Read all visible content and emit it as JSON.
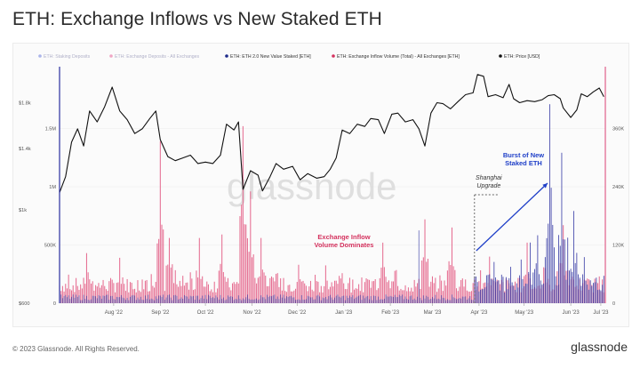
{
  "page": {
    "title": "ETH: Exchange Inflows vs New Staked ETH",
    "copyright": "© 2023 Glassnode. All Rights Reserved.",
    "brand": "glassnode",
    "watermark": "glassnode"
  },
  "chart_data": {
    "type": "bar",
    "title": "ETH: Exchange Inflows vs New Staked ETH",
    "legend": [
      {
        "label": "ETH: Staking Deposits",
        "color": "#aab4ea",
        "dimmed": true
      },
      {
        "label": "ETH: Exchange Deposits - All Exchanges",
        "color": "#f0a6c4",
        "dimmed": true
      },
      {
        "label": "ETH: ETH 2.0 New Value Staked [ETH]",
        "color": "#1d2a8a",
        "dimmed": false
      },
      {
        "label": "ETH: Exchange Inflow Volume (Total) - All Exchanges [ETH]",
        "color": "#d4335f",
        "dimmed": false
      },
      {
        "label": "ETH: Price [USD]",
        "color": "#111111",
        "dimmed": false
      }
    ],
    "legend_position": "top",
    "grid": true,
    "x_range": [
      "2022-07-10",
      "2023-07-08"
    ],
    "x_ticks": [
      "Aug '22",
      "Sep '22",
      "Oct '22",
      "Nov '22",
      "Dec '22",
      "Jan '23",
      "Feb '23",
      "Mar '23",
      "Apr '23",
      "May '23",
      "Jun '23",
      "Jul '23"
    ],
    "y_price": {
      "scale": "log",
      "ticks": [
        "$600",
        "$1k",
        "$1.4k",
        "$1.8k"
      ],
      "range": [
        600,
        2150
      ]
    },
    "y_inflow": {
      "ticks": [
        "0",
        "500K",
        "1M",
        "1.5M"
      ],
      "range": [
        0,
        2000000
      ]
    },
    "y_staked": {
      "ticks": [
        "0",
        "120K",
        "240K",
        "360K"
      ],
      "range": [
        0,
        480000
      ]
    },
    "price_series": {
      "name": "ETH: Price [USD]",
      "points": [
        [
          "2022-07-10",
          1100
        ],
        [
          "2022-07-14",
          1200
        ],
        [
          "2022-07-18",
          1450
        ],
        [
          "2022-07-22",
          1560
        ],
        [
          "2022-07-26",
          1420
        ],
        [
          "2022-07-30",
          1720
        ],
        [
          "2022-08-04",
          1620
        ],
        [
          "2022-08-09",
          1760
        ],
        [
          "2022-08-14",
          1960
        ],
        [
          "2022-08-19",
          1720
        ],
        [
          "2022-08-24",
          1640
        ],
        [
          "2022-08-29",
          1520
        ],
        [
          "2022-09-03",
          1560
        ],
        [
          "2022-09-08",
          1650
        ],
        [
          "2022-09-12",
          1720
        ],
        [
          "2022-09-15",
          1470
        ],
        [
          "2022-09-20",
          1340
        ],
        [
          "2022-09-25",
          1310
        ],
        [
          "2022-09-30",
          1330
        ],
        [
          "2022-10-05",
          1350
        ],
        [
          "2022-10-10",
          1290
        ],
        [
          "2022-10-15",
          1300
        ],
        [
          "2022-10-20",
          1290
        ],
        [
          "2022-10-25",
          1350
        ],
        [
          "2022-10-29",
          1600
        ],
        [
          "2022-11-03",
          1550
        ],
        [
          "2022-11-06",
          1620
        ],
        [
          "2022-11-09",
          1120
        ],
        [
          "2022-11-14",
          1240
        ],
        [
          "2022-11-19",
          1210
        ],
        [
          "2022-11-22",
          1110
        ],
        [
          "2022-11-27",
          1200
        ],
        [
          "2022-12-01",
          1290
        ],
        [
          "2022-12-06",
          1250
        ],
        [
          "2022-12-12",
          1270
        ],
        [
          "2022-12-17",
          1180
        ],
        [
          "2022-12-22",
          1220
        ],
        [
          "2022-12-28",
          1190
        ],
        [
          "2023-01-02",
          1200
        ],
        [
          "2023-01-06",
          1250
        ],
        [
          "2023-01-10",
          1330
        ],
        [
          "2023-01-14",
          1550
        ],
        [
          "2023-01-19",
          1520
        ],
        [
          "2023-01-24",
          1600
        ],
        [
          "2023-01-29",
          1580
        ],
        [
          "2023-02-02",
          1650
        ],
        [
          "2023-02-07",
          1640
        ],
        [
          "2023-02-11",
          1520
        ],
        [
          "2023-02-16",
          1690
        ],
        [
          "2023-02-20",
          1700
        ],
        [
          "2023-02-25",
          1620
        ],
        [
          "2023-03-02",
          1640
        ],
        [
          "2023-03-06",
          1560
        ],
        [
          "2023-03-10",
          1420
        ],
        [
          "2023-03-14",
          1700
        ],
        [
          "2023-03-18",
          1800
        ],
        [
          "2023-03-22",
          1790
        ],
        [
          "2023-03-27",
          1740
        ],
        [
          "2023-04-01",
          1810
        ],
        [
          "2023-04-06",
          1880
        ],
        [
          "2023-04-11",
          1900
        ],
        [
          "2023-04-14",
          2100
        ],
        [
          "2023-04-18",
          2080
        ],
        [
          "2023-04-21",
          1860
        ],
        [
          "2023-04-26",
          1880
        ],
        [
          "2023-05-01",
          1850
        ],
        [
          "2023-05-05",
          1990
        ],
        [
          "2023-05-08",
          1840
        ],
        [
          "2023-05-12",
          1800
        ],
        [
          "2023-05-17",
          1820
        ],
        [
          "2023-05-22",
          1810
        ],
        [
          "2023-05-27",
          1830
        ],
        [
          "2023-05-31",
          1870
        ],
        [
          "2023-06-04",
          1880
        ],
        [
          "2023-06-08",
          1840
        ],
        [
          "2023-06-10",
          1750
        ],
        [
          "2023-06-15",
          1660
        ],
        [
          "2023-06-19",
          1730
        ],
        [
          "2023-06-22",
          1890
        ],
        [
          "2023-06-26",
          1860
        ],
        [
          "2023-06-30",
          1910
        ],
        [
          "2023-07-04",
          1950
        ],
        [
          "2023-07-07",
          1860
        ]
      ]
    },
    "inflow_series": {
      "name": "ETH: Exchange Inflow Volume (Total) - All Exchanges [ETH]",
      "peaks": [
        [
          "2022-07-28",
          430000
        ],
        [
          "2022-08-19",
          390000
        ],
        [
          "2022-09-15",
          1390000
        ],
        [
          "2022-09-21",
          560000
        ],
        [
          "2022-10-11",
          560000
        ],
        [
          "2022-10-26",
          590000
        ],
        [
          "2022-11-09",
          1520000
        ],
        [
          "2022-11-14",
          960000
        ],
        [
          "2022-11-21",
          560000
        ],
        [
          "2022-12-16",
          330000
        ],
        [
          "2023-02-10",
          520000
        ],
        [
          "2023-03-10",
          720000
        ],
        [
          "2023-03-28",
          650000
        ],
        [
          "2023-04-22",
          400000
        ],
        [
          "2023-05-17",
          520000
        ],
        [
          "2023-06-10",
          670000
        ],
        [
          "2023-07-04",
          230000
        ]
      ]
    },
    "staked_series": {
      "name": "ETH: ETH 2.0 New Value Staked [ETH]",
      "peaks": [
        [
          "2023-03-06",
          150000
        ],
        [
          "2023-04-13",
          55000
        ],
        [
          "2023-04-25",
          85000
        ],
        [
          "2023-05-06",
          75000
        ],
        [
          "2023-05-13",
          90000
        ],
        [
          "2023-05-19",
          125000
        ],
        [
          "2023-05-24",
          140000
        ],
        [
          "2023-05-29",
          95000
        ],
        [
          "2023-06-01",
          410000
        ],
        [
          "2023-06-04",
          115000
        ],
        [
          "2023-06-09",
          310000
        ],
        [
          "2023-06-13",
          135000
        ],
        [
          "2023-06-17",
          190000
        ],
        [
          "2023-06-24",
          95000
        ]
      ]
    },
    "annotations": [
      {
        "id": "inflow",
        "lines": [
          "Exchange Inflow",
          "Volume Dominates"
        ],
        "color": "#d4335f"
      },
      {
        "id": "burst",
        "lines": [
          "Burst of New",
          "Staked ETH"
        ],
        "color": "#2040c8"
      },
      {
        "id": "shanghai",
        "lines": [
          "Shanghai",
          "Upgrade"
        ],
        "color": "#333333",
        "date": "2023-04-12"
      }
    ]
  }
}
